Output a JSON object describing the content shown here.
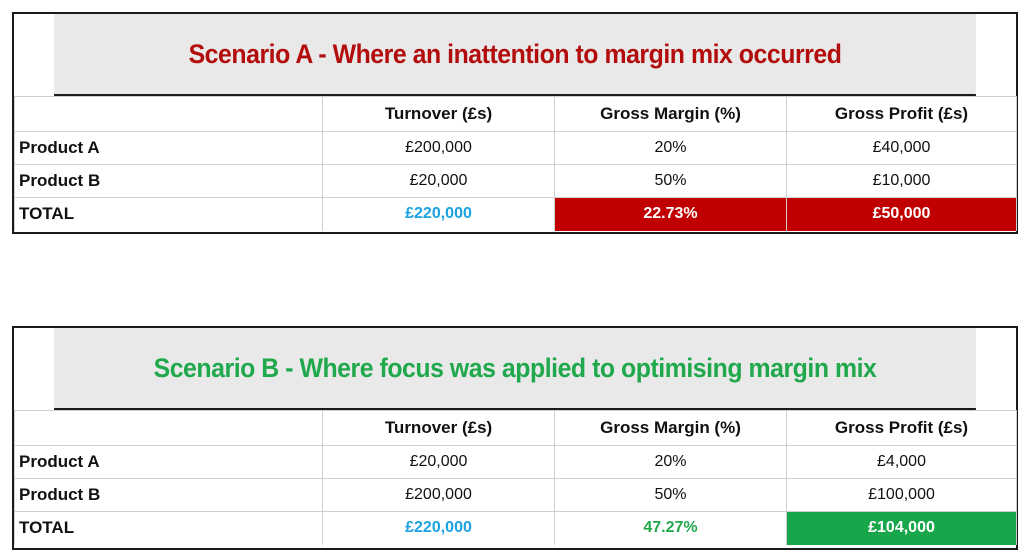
{
  "scenario_a": {
    "title": "Scenario A - Where an inattention to margin mix occurred",
    "headers": [
      "",
      "Turnover (£s)",
      "Gross Margin (%)",
      "Gross Profit (£s)"
    ],
    "rows": [
      {
        "label": "Product A",
        "turnover": "£200,000",
        "margin": "20%",
        "profit": "£40,000"
      },
      {
        "label": "Product B",
        "turnover": "£20,000",
        "margin": "50%",
        "profit": "£10,000"
      }
    ],
    "total": {
      "label": "TOTAL",
      "turnover": "£220,000",
      "margin": "22.73%",
      "profit": "£50,000"
    }
  },
  "scenario_b": {
    "title": "Scenario B - Where focus was applied to optimising margin mix",
    "headers": [
      "",
      "Turnover (£s)",
      "Gross Margin (%)",
      "Gross Profit (£s)"
    ],
    "rows": [
      {
        "label": "Product A",
        "turnover": "£20,000",
        "margin": "20%",
        "profit": "£4,000"
      },
      {
        "label": "Product B",
        "turnover": "£200,000",
        "margin": "50%",
        "profit": "£100,000"
      }
    ],
    "total": {
      "label": "TOTAL",
      "turnover": "£220,000",
      "margin": "47.27%",
      "profit": "£104,000"
    }
  },
  "colors": {
    "title_a": "#b30c0c",
    "title_b": "#20a84c",
    "turnover_total": "#1aa3e0",
    "red_fill": "#c00000",
    "green_fill": "#17a74a"
  }
}
